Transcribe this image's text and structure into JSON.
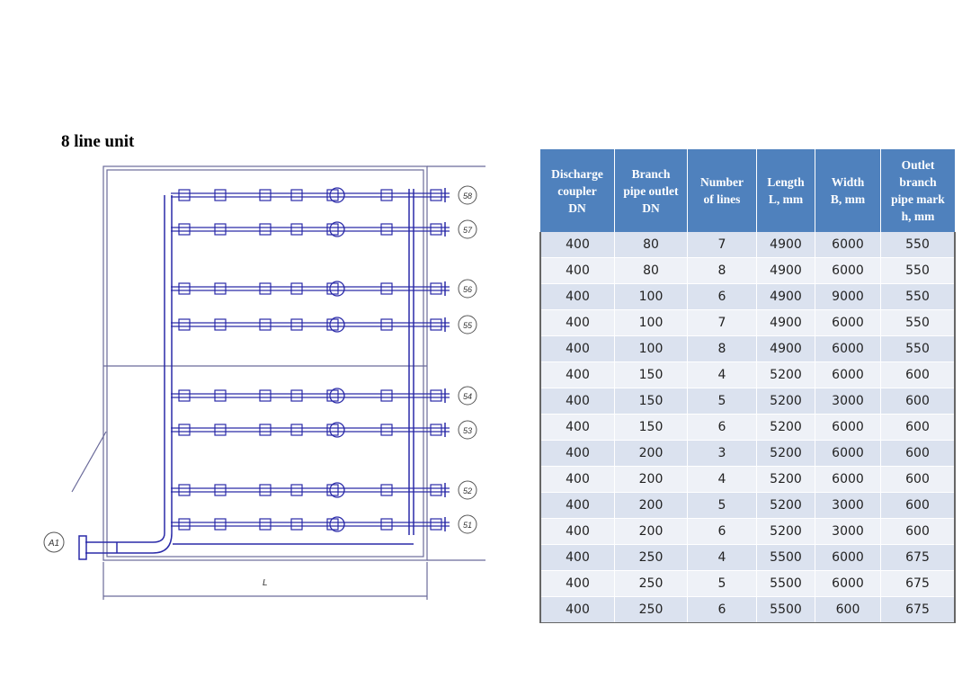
{
  "title": "8 line unit",
  "drawing": {
    "line_marks": [
      "58",
      "57",
      "56",
      "55",
      "54",
      "53",
      "52",
      "51"
    ],
    "inlet_mark": "A1",
    "dimension_label": "L"
  },
  "table": {
    "headers": [
      [
        "Discharge",
        "coupler",
        "DN"
      ],
      [
        "Branch",
        "pipe outlet",
        "DN"
      ],
      [
        "Number",
        "of lines"
      ],
      [
        "Length",
        "L, mm"
      ],
      [
        "Width",
        "B, mm"
      ],
      [
        "Outlet",
        "branch",
        "pipe mark",
        "h, mm"
      ]
    ],
    "rows": [
      [
        "400",
        "80",
        "7",
        "4900",
        "6000",
        "550"
      ],
      [
        "400",
        "80",
        "8",
        "4900",
        "6000",
        "550"
      ],
      [
        "400",
        "100",
        "6",
        "4900",
        "9000",
        "550"
      ],
      [
        "400",
        "100",
        "7",
        "4900",
        "6000",
        "550"
      ],
      [
        "400",
        "100",
        "8",
        "4900",
        "6000",
        "550"
      ],
      [
        "400",
        "150",
        "4",
        "5200",
        "6000",
        "600"
      ],
      [
        "400",
        "150",
        "5",
        "5200",
        "3000",
        "600"
      ],
      [
        "400",
        "150",
        "6",
        "5200",
        "6000",
        "600"
      ],
      [
        "400",
        "200",
        "3",
        "5200",
        "6000",
        "600"
      ],
      [
        "400",
        "200",
        "4",
        "5200",
        "6000",
        "600"
      ],
      [
        "400",
        "200",
        "5",
        "5200",
        "3000",
        "600"
      ],
      [
        "400",
        "200",
        "6",
        "5200",
        "3000",
        "600"
      ],
      [
        "400",
        "250",
        "4",
        "5500",
        "6000",
        "675"
      ],
      [
        "400",
        "250",
        "5",
        "5500",
        "6000",
        "675"
      ],
      [
        "400",
        "250",
        "6",
        "5500",
        "600",
        "675"
      ]
    ]
  }
}
